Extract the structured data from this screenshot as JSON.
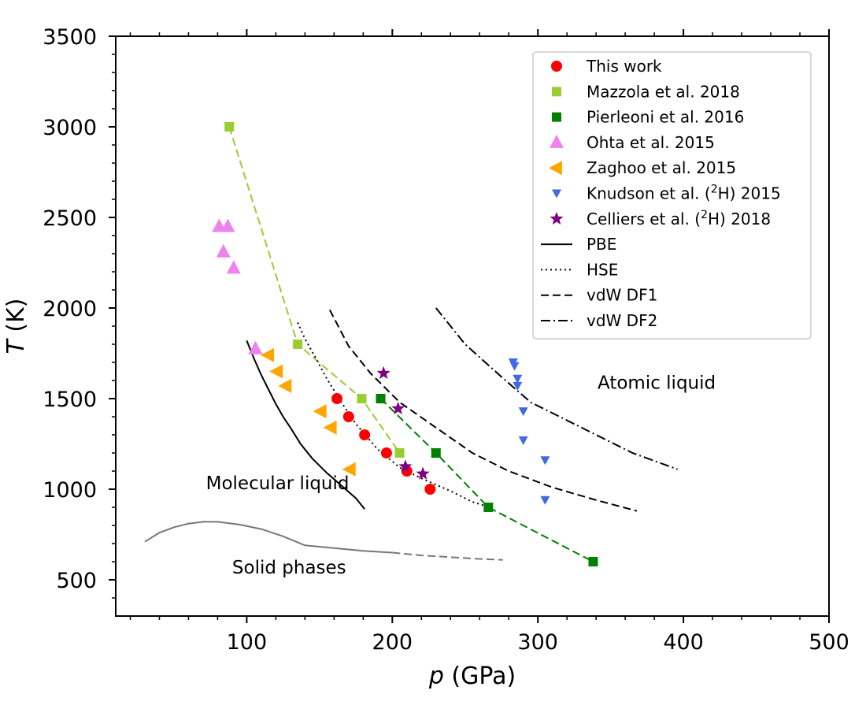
{
  "chart_data": {
    "type": "scatter",
    "title": "",
    "xlabel_var": "p",
    "xlabel_unit": " (GPa)",
    "ylabel_var": "T",
    "ylabel_unit": " (K)",
    "xlim": [
      10,
      500
    ],
    "ylim": [
      300,
      3500
    ],
    "x_ticks": [
      100,
      200,
      300,
      400,
      500
    ],
    "y_ticks": [
      500,
      1000,
      1500,
      2000,
      2500,
      3000,
      3500
    ],
    "x_tick_labels": [
      "100",
      "200",
      "300",
      "400",
      "500"
    ],
    "y_tick_labels": [
      "500",
      "1000",
      "1500",
      "2000",
      "2500",
      "3000",
      "3500"
    ],
    "grid": false,
    "legend_position": "top-right",
    "series": [
      {
        "name": "This work",
        "kind": "points",
        "marker": "circle",
        "color": "#ff0000",
        "x": [
          162,
          170,
          181,
          196,
          210,
          226
        ],
        "y": [
          1500,
          1400,
          1300,
          1200,
          1100,
          1000
        ]
      },
      {
        "name": "Mazzola et al. 2018",
        "kind": "points",
        "marker": "square",
        "color": "#9acd32",
        "connect": "dashed",
        "x": [
          88,
          135,
          179,
          205
        ],
        "y": [
          3000,
          1800,
          1500,
          1200
        ]
      },
      {
        "name": "Pierleoni et al. 2016",
        "kind": "points",
        "marker": "square",
        "color": "#008000",
        "connect": "dashed",
        "x": [
          192,
          230,
          266,
          338
        ],
        "y": [
          1500,
          1200,
          900,
          600
        ]
      },
      {
        "name": "Ohta et al. 2015",
        "kind": "points",
        "marker": "triangle-up",
        "color": "#ee82ee",
        "x": [
          81,
          87,
          84,
          91,
          106
        ],
        "y": [
          2450,
          2450,
          2310,
          2220,
          1775
        ]
      },
      {
        "name": "Zaghoo et al. 2015",
        "kind": "points",
        "marker": "triangle-left",
        "color": "#ffa500",
        "x": [
          115,
          121,
          127,
          151,
          158,
          171
        ],
        "y": [
          1740,
          1650,
          1570,
          1430,
          1340,
          1110
        ]
      },
      {
        "name": "Knudson et al. (²H) 2015",
        "legend_pre": "Knudson et al. (",
        "legend_sup": "2",
        "legend_post": "H) 2015",
        "kind": "points",
        "marker": "triangle-down",
        "color": "#4169e1",
        "x": [
          283,
          284,
          286,
          286,
          290,
          290,
          305,
          305
        ],
        "y": [
          1700,
          1680,
          1610,
          1570,
          1430,
          1270,
          1160,
          940
        ]
      },
      {
        "name": "Celliers et al. (²H) 2018",
        "legend_pre": "Celliers et al. (",
        "legend_sup": "2",
        "legend_post": "H) 2018",
        "kind": "points",
        "marker": "star",
        "color": "#800080",
        "x": [
          194,
          204,
          209,
          221
        ],
        "y": [
          1640,
          1445,
          1125,
          1085
        ]
      },
      {
        "name": "PBE",
        "kind": "line",
        "style": "solid",
        "color": "#000000",
        "x": [
          100,
          105,
          110,
          115,
          120,
          125,
          130,
          137,
          145,
          155,
          165,
          175,
          181
        ],
        "y": [
          1820,
          1720,
          1630,
          1550,
          1470,
          1400,
          1340,
          1250,
          1170,
          1090,
          1020,
          950,
          890
        ]
      },
      {
        "name": "HSE",
        "kind": "line",
        "style": "dotted",
        "color": "#000000",
        "x": [
          135,
          140,
          147,
          155,
          165,
          175,
          190,
          205,
          220,
          240,
          255,
          267
        ],
        "y": [
          1920,
          1830,
          1730,
          1610,
          1480,
          1360,
          1220,
          1120,
          1060,
          990,
          930,
          900
        ]
      },
      {
        "name": "vdW DF1",
        "kind": "line",
        "style": "dashed",
        "color": "#000000",
        "x": [
          157,
          170,
          185,
          205,
          230,
          255,
          280,
          310,
          340,
          368
        ],
        "y": [
          1990,
          1790,
          1640,
          1480,
          1340,
          1200,
          1100,
          1010,
          940,
          880
        ]
      },
      {
        "name": "vdW DF2",
        "kind": "line",
        "style": "dashdot",
        "color": "#000000",
        "x": [
          230,
          250,
          275,
          295,
          320,
          345,
          365,
          396
        ],
        "y": [
          2000,
          1800,
          1620,
          1480,
          1380,
          1280,
          1200,
          1110
        ]
      }
    ],
    "extra_lines": [
      {
        "name": "solid-boundary",
        "style": "solid",
        "color": "#777777",
        "x": [
          30,
          40,
          50,
          60,
          70,
          80,
          95,
          110,
          125,
          140,
          160,
          180,
          200
        ],
        "y": [
          710,
          760,
          790,
          810,
          820,
          820,
          805,
          780,
          740,
          690,
          675,
          660,
          650
        ]
      },
      {
        "name": "solid-boundary-extrapolated",
        "style": "dashed",
        "color": "#777777",
        "x": [
          200,
          220,
          240,
          260,
          276
        ],
        "y": [
          650,
          635,
          625,
          615,
          610
        ]
      }
    ],
    "annotations": [
      {
        "text": "Atomic liquid",
        "x": 341,
        "y": 1555
      },
      {
        "text": "Molecular liquid",
        "x": 72,
        "y": 1000
      },
      {
        "text": "Solid phases",
        "x": 90,
        "y": 535
      }
    ]
  }
}
